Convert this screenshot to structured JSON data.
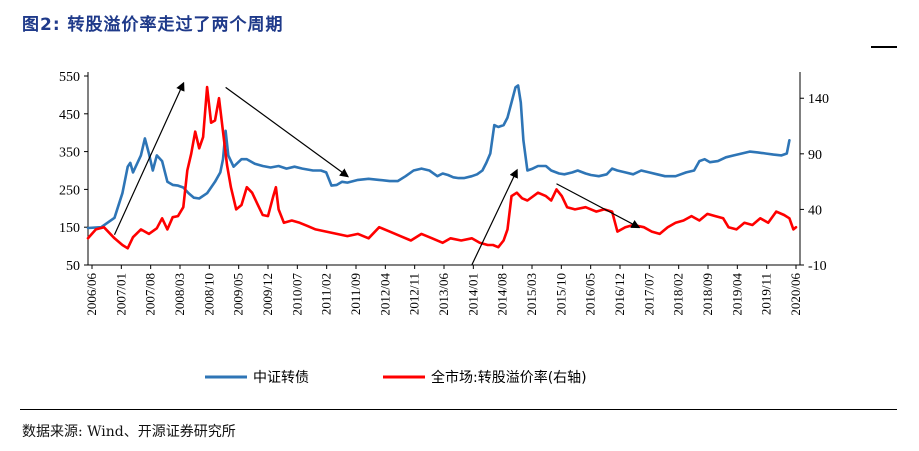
{
  "figure": {
    "title": "图2:  转股溢价率走过了两个周期",
    "source": "数据来源:  Wind、开源证券研究所"
  },
  "chart_data": {
    "type": "line",
    "left_axis": {
      "ticks": [
        "550",
        "450",
        "350",
        "250",
        "150",
        "50"
      ],
      "ylim": [
        50,
        550
      ]
    },
    "right_axis": {
      "ticks": [
        "140",
        "90",
        "40",
        "-10"
      ],
      "ylim": [
        -10,
        160
      ]
    },
    "x_ticks": [
      "2006/06",
      "2007/01",
      "2007/08",
      "2008/03",
      "2008/10",
      "2009/05",
      "2009/12",
      "2010/07",
      "2011/02",
      "2011/09",
      "2012/04",
      "2012/11",
      "2013/06",
      "2014/01",
      "2014/08",
      "2015/03",
      "2015/10",
      "2016/05",
      "2016/12",
      "2017/07",
      "2018/02",
      "2018/09",
      "2019/04",
      "2019/11",
      "2020/06"
    ],
    "series": [
      {
        "name": "中证转债",
        "axis": "left",
        "color": "#2e75b6",
        "points": [
          [
            0,
            148
          ],
          [
            0.5,
            150
          ],
          [
            1,
            175
          ],
          [
            1.3,
            240
          ],
          [
            1.5,
            310
          ],
          [
            1.6,
            320
          ],
          [
            1.7,
            295
          ],
          [
            2,
            340
          ],
          [
            2.15,
            385
          ],
          [
            2.3,
            345
          ],
          [
            2.45,
            300
          ],
          [
            2.6,
            340
          ],
          [
            2.8,
            325
          ],
          [
            3,
            270
          ],
          [
            3.2,
            262
          ],
          [
            3.4,
            260
          ],
          [
            3.6,
            255
          ],
          [
            3.8,
            240
          ],
          [
            4,
            228
          ],
          [
            4.2,
            226
          ],
          [
            4.5,
            240
          ],
          [
            4.8,
            270
          ],
          [
            5,
            295
          ],
          [
            5.1,
            330
          ],
          [
            5.2,
            405
          ],
          [
            5.3,
            340
          ],
          [
            5.5,
            310
          ],
          [
            5.8,
            330
          ],
          [
            6,
            330
          ],
          [
            6.3,
            318
          ],
          [
            6.6,
            312
          ],
          [
            6.9,
            308
          ],
          [
            7.2,
            312
          ],
          [
            7.5,
            305
          ],
          [
            7.8,
            310
          ],
          [
            8.1,
            305
          ],
          [
            8.5,
            300
          ],
          [
            8.8,
            300
          ],
          [
            9,
            295
          ],
          [
            9.2,
            260
          ],
          [
            9.4,
            262
          ],
          [
            9.6,
            270
          ],
          [
            9.8,
            268
          ],
          [
            10.2,
            275
          ],
          [
            10.6,
            278
          ],
          [
            11,
            275
          ],
          [
            11.4,
            272
          ],
          [
            11.7,
            272
          ],
          [
            12,
            285
          ],
          [
            12.3,
            300
          ],
          [
            12.6,
            305
          ],
          [
            12.9,
            300
          ],
          [
            13,
            295
          ],
          [
            13.2,
            285
          ],
          [
            13.4,
            292
          ],
          [
            13.6,
            288
          ],
          [
            13.8,
            282
          ],
          [
            14,
            280
          ],
          [
            14.2,
            280
          ],
          [
            14.5,
            285
          ],
          [
            14.7,
            290
          ],
          [
            14.9,
            300
          ],
          [
            15.05,
            320
          ],
          [
            15.2,
            345
          ],
          [
            15.35,
            420
          ],
          [
            15.5,
            415
          ],
          [
            15.7,
            420
          ],
          [
            15.85,
            440
          ],
          [
            16,
            480
          ],
          [
            16.15,
            520
          ],
          [
            16.25,
            525
          ],
          [
            16.35,
            480
          ],
          [
            16.45,
            380
          ],
          [
            16.6,
            300
          ],
          [
            16.8,
            305
          ],
          [
            17,
            312
          ],
          [
            17.3,
            312
          ],
          [
            17.5,
            300
          ],
          [
            17.8,
            292
          ],
          [
            18,
            290
          ],
          [
            18.3,
            295
          ],
          [
            18.5,
            300
          ],
          [
            18.8,
            292
          ],
          [
            19,
            288
          ],
          [
            19.3,
            285
          ],
          [
            19.6,
            290
          ],
          [
            19.8,
            305
          ],
          [
            20,
            300
          ],
          [
            20.3,
            295
          ],
          [
            20.6,
            290
          ],
          [
            20.9,
            300
          ],
          [
            21.2,
            295
          ],
          [
            21.5,
            290
          ],
          [
            21.8,
            285
          ],
          [
            22.2,
            285
          ],
          [
            22.6,
            295
          ],
          [
            22.9,
            300
          ],
          [
            23.1,
            325
          ],
          [
            23.3,
            330
          ],
          [
            23.5,
            322
          ],
          [
            23.8,
            325
          ],
          [
            24.1,
            335
          ],
          [
            24.4,
            340
          ],
          [
            24.7,
            345
          ],
          [
            25,
            350
          ],
          [
            25.3,
            348
          ],
          [
            25.6,
            345
          ],
          [
            25.9,
            342
          ],
          [
            26.2,
            340
          ],
          [
            26.4,
            345
          ],
          [
            26.5,
            380
          ]
        ]
      },
      {
        "name": "全市场:转股溢价率(右轴)",
        "axis": "right",
        "color": "#ff0000",
        "points": [
          [
            0,
            14
          ],
          [
            0.3,
            22
          ],
          [
            0.6,
            24
          ],
          [
            1,
            14
          ],
          [
            1.3,
            8
          ],
          [
            1.5,
            5
          ],
          [
            1.7,
            15
          ],
          [
            2,
            22
          ],
          [
            2.3,
            18
          ],
          [
            2.6,
            23
          ],
          [
            2.8,
            32
          ],
          [
            3,
            22
          ],
          [
            3.2,
            33
          ],
          [
            3.4,
            34
          ],
          [
            3.6,
            42
          ],
          [
            3.75,
            75
          ],
          [
            3.9,
            90
          ],
          [
            4.05,
            110
          ],
          [
            4.2,
            95
          ],
          [
            4.35,
            105
          ],
          [
            4.5,
            150
          ],
          [
            4.65,
            118
          ],
          [
            4.8,
            120
          ],
          [
            4.95,
            140
          ],
          [
            5.1,
            110
          ],
          [
            5.25,
            80
          ],
          [
            5.4,
            60
          ],
          [
            5.6,
            40
          ],
          [
            5.8,
            44
          ],
          [
            6,
            60
          ],
          [
            6.2,
            55
          ],
          [
            6.4,
            45
          ],
          [
            6.6,
            35
          ],
          [
            6.8,
            34
          ],
          [
            7,
            52
          ],
          [
            7.1,
            60
          ],
          [
            7.2,
            40
          ],
          [
            7.4,
            28
          ],
          [
            7.7,
            30
          ],
          [
            8,
            28
          ],
          [
            8.3,
            25
          ],
          [
            8.6,
            22
          ],
          [
            9,
            20
          ],
          [
            9.4,
            18
          ],
          [
            9.8,
            16
          ],
          [
            10.2,
            18
          ],
          [
            10.6,
            14
          ],
          [
            11,
            24
          ],
          [
            11.4,
            20
          ],
          [
            11.8,
            16
          ],
          [
            12.2,
            12
          ],
          [
            12.6,
            18
          ],
          [
            13,
            14
          ],
          [
            13.4,
            10
          ],
          [
            13.7,
            14
          ],
          [
            14.1,
            12
          ],
          [
            14.5,
            14
          ],
          [
            14.8,
            10
          ],
          [
            15.1,
            8
          ],
          [
            15.3,
            8
          ],
          [
            15.5,
            6
          ],
          [
            15.7,
            12
          ],
          [
            15.85,
            22
          ],
          [
            16,
            52
          ],
          [
            16.2,
            55
          ],
          [
            16.4,
            50
          ],
          [
            16.6,
            48
          ],
          [
            17,
            55
          ],
          [
            17.3,
            52
          ],
          [
            17.5,
            48
          ],
          [
            17.7,
            58
          ],
          [
            17.9,
            52
          ],
          [
            18.1,
            42
          ],
          [
            18.4,
            40
          ],
          [
            18.8,
            42
          ],
          [
            19.2,
            38
          ],
          [
            19.5,
            40
          ],
          [
            19.8,
            38
          ],
          [
            20,
            20
          ],
          [
            20.3,
            24
          ],
          [
            20.6,
            26
          ],
          [
            21,
            24
          ],
          [
            21.3,
            20
          ],
          [
            21.6,
            18
          ],
          [
            21.9,
            24
          ],
          [
            22.2,
            28
          ],
          [
            22.5,
            30
          ],
          [
            22.8,
            34
          ],
          [
            23.1,
            30
          ],
          [
            23.4,
            36
          ],
          [
            23.7,
            34
          ],
          [
            24,
            32
          ],
          [
            24.2,
            24
          ],
          [
            24.5,
            22
          ],
          [
            24.8,
            28
          ],
          [
            25.1,
            26
          ],
          [
            25.4,
            32
          ],
          [
            25.7,
            28
          ],
          [
            26,
            38
          ],
          [
            26.3,
            35
          ],
          [
            26.5,
            32
          ],
          [
            26.65,
            22
          ],
          [
            26.75,
            24
          ]
        ]
      }
    ],
    "legend": [
      {
        "name": "中证转债",
        "color": "#2e75b6"
      },
      {
        "name": "全市场:转股溢价率(右轴)",
        "color": "#ff0000"
      }
    ],
    "legend_labels": [
      "中证转债",
      "全市场:转股溢价率(右轴)"
    ],
    "annotations": [
      {
        "type": "arrow",
        "from": [
          1,
          130
        ],
        "to": [
          3.6,
          530
        ]
      },
      {
        "type": "arrow",
        "from": [
          5.2,
          520
        ],
        "to": [
          9.8,
          285
        ]
      },
      {
        "type": "arrow",
        "from": [
          14.5,
          50
        ],
        "to": [
          16.2,
          300
        ]
      },
      {
        "type": "arrow",
        "from": [
          17.7,
          265
        ],
        "to": [
          20.8,
          150
        ]
      }
    ]
  }
}
